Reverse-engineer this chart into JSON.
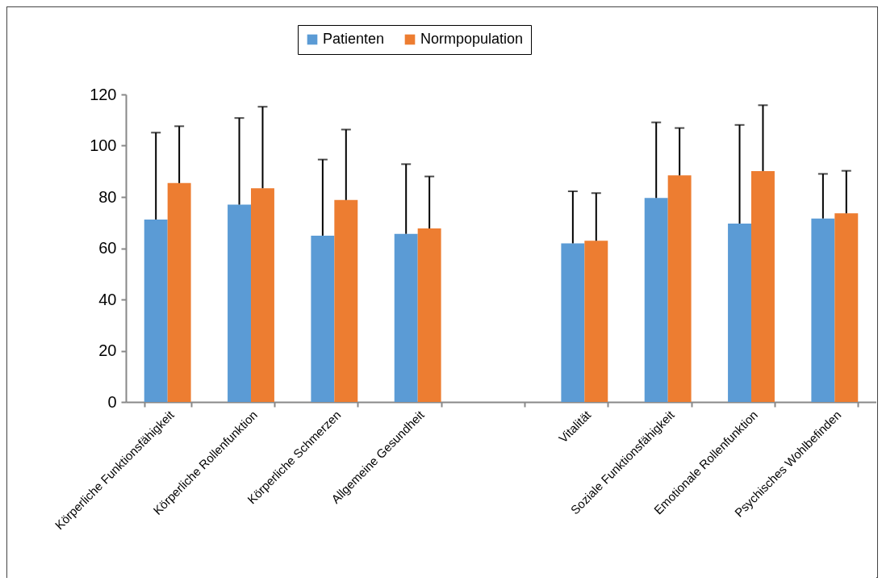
{
  "chart_data": {
    "type": "bar",
    "categories": [
      "Körperliche Funktionsfähigkeit",
      "Körperliche Rollenfunktion",
      "Körperliche Schmerzen",
      "Allgemeine Gesundheit",
      null,
      "Vitalität",
      "Soziale Funktionsfähigkeit",
      "Emotionale Rollenfunktion",
      "Psychisches Wohlbefinden"
    ],
    "series": [
      {
        "name": "Patienten",
        "color": "#5b9bd5",
        "values": [
          71.2,
          77.0,
          64.9,
          65.6,
          null,
          61.9,
          79.6,
          69.6,
          71.6
        ],
        "errors": [
          [
            71.2,
            105.1
          ],
          [
            77.0,
            110.8
          ],
          [
            64.9,
            94.6
          ],
          [
            65.6,
            92.8
          ],
          null,
          [
            61.9,
            82.2
          ],
          [
            79.6,
            109.1
          ],
          [
            69.6,
            108.1
          ],
          [
            71.6,
            89.0
          ]
        ]
      },
      {
        "name": "Normpopulation",
        "color": "#ed7d31",
        "values": [
          85.4,
          83.4,
          78.8,
          67.7,
          null,
          62.9,
          88.4,
          90.1,
          73.6
        ],
        "errors": [
          [
            85.4,
            107.6
          ],
          [
            83.4,
            115.2
          ],
          [
            78.8,
            106.3
          ],
          [
            67.7,
            88.0
          ],
          null,
          [
            62.9,
            81.5
          ],
          [
            88.4,
            106.9
          ],
          [
            90.1,
            115.8
          ],
          [
            73.6,
            90.2
          ]
        ]
      }
    ],
    "ylim": [
      0,
      120
    ],
    "yticks": [
      0,
      20,
      40,
      60,
      80,
      100,
      120
    ],
    "grid": false,
    "legend": "top"
  }
}
